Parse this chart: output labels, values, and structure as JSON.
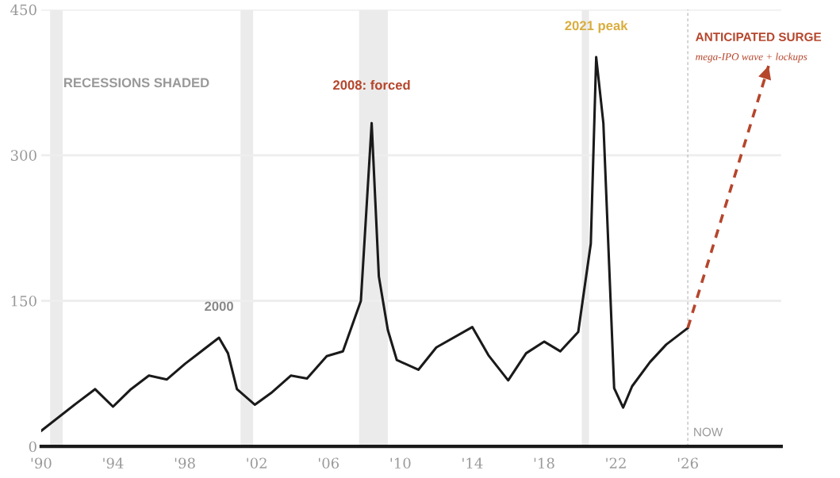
{
  "chart_data": {
    "type": "line",
    "series": [
      {
        "color": "#1a1a1a",
        "x": [
          1990,
          1992,
          1993,
          1994,
          1995,
          1996,
          1997,
          1998,
          1999.9,
          2000.4,
          2000.9,
          2001.9,
          2002.8,
          2003.9,
          2004.8,
          2005.9,
          2006.8,
          2007.8,
          2008.4,
          2008.8,
          2009.3,
          2009.8,
          2011,
          2012,
          2014,
          2014.9,
          2016,
          2017,
          2018,
          2018.9,
          2019.9,
          2020.6,
          2020.9,
          2021.3,
          2021.9,
          2022.4,
          2022.9,
          2023.9,
          2024.8,
          2026
        ],
        "values": [
          16,
          45,
          59,
          41,
          59,
          73,
          69,
          85,
          112,
          96,
          59,
          43,
          55,
          73,
          70,
          93,
          98,
          150,
          333,
          175,
          120,
          89,
          79,
          102,
          123,
          94,
          68,
          96,
          108,
          98,
          118,
          209,
          401,
          333,
          60,
          40,
          62,
          87,
          105,
          122
        ]
      },
      {
        "color": "#b5462c",
        "type": "line",
        "line_style": "dashed",
        "x": [
          2026,
          2030.5
        ],
        "values": [
          122,
          392
        ]
      }
    ],
    "xlim": [
      1990,
      2031.2
    ],
    "ylim": [
      0,
      450
    ],
    "xticks": [
      {
        "value": 1990,
        "label": "'90"
      },
      {
        "value": 1994,
        "label": "'94"
      },
      {
        "value": 1998,
        "label": "'98"
      },
      {
        "value": 2002,
        "label": "'02"
      },
      {
        "value": 2006,
        "label": "'06"
      },
      {
        "value": 2010,
        "label": "'10"
      },
      {
        "value": 2014,
        "label": "'14"
      },
      {
        "value": 2018,
        "label": "'18"
      },
      {
        "value": 2022,
        "label": "'22"
      },
      {
        "value": 2026,
        "label": "'26"
      }
    ],
    "yticks": [
      0,
      150,
      300,
      450
    ],
    "grid": "y",
    "bands": [
      {
        "axis": "x",
        "from": 1990.5,
        "to": 1991.2,
        "color": "#ebebeb"
      },
      {
        "axis": "x",
        "from": 2001.1,
        "to": 2001.8,
        "color": "#ebebeb"
      },
      {
        "axis": "x",
        "from": 2007.7,
        "to": 2009.3,
        "color": "#ebebeb"
      },
      {
        "axis": "x",
        "from": 2020.1,
        "to": 2020.5,
        "color": "#ebebeb"
      }
    ],
    "ref_lines": [
      {
        "axis": "x",
        "value": 2026,
        "label": "NOW",
        "color": "#bbbbbb",
        "line_style": "dashed"
      }
    ],
    "annotations": [
      "RECESSIONS SHADED",
      {
        "text": "2000",
        "x": 1999.9,
        "y": 112
      },
      {
        "text": "2008: forced",
        "x": 2008.4,
        "y": 333
      },
      {
        "text": "2021 peak",
        "x": 2020.9,
        "y": 401
      },
      "ANTICIPATED SURGE",
      "mega-IPO wave + lockups"
    ]
  }
}
